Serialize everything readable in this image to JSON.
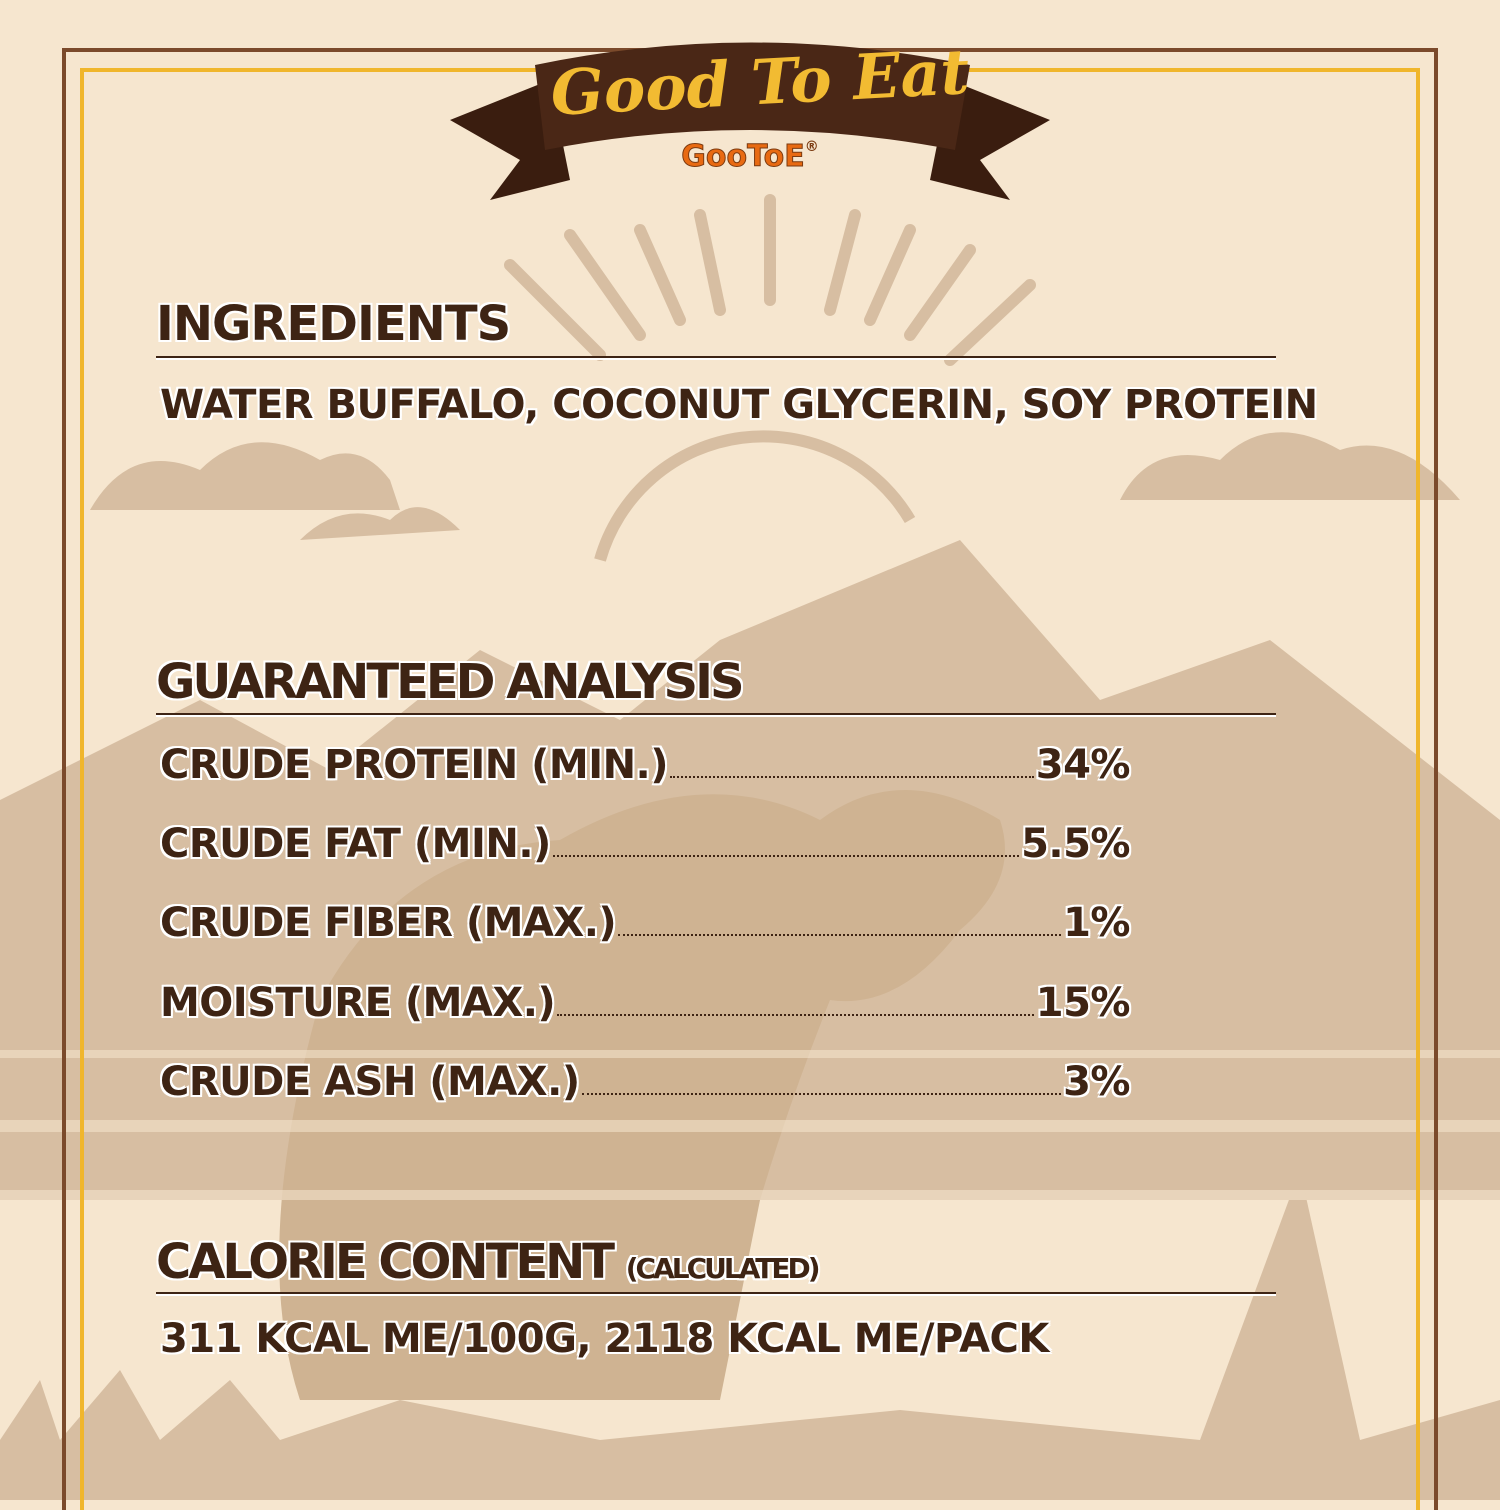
{
  "header": {
    "title": "Good To Eat",
    "brand": "GooToE",
    "registered_mark": "®"
  },
  "ingredients": {
    "heading": "INGREDIENTS",
    "text": "WATER BUFFALO, COCONUT GLYCERIN, SOY PROTEIN"
  },
  "analysis": {
    "heading": "GUARANTEED ANALYSIS",
    "rows": [
      {
        "label": "CRUDE PROTEIN (MIN.)",
        "value": "34%"
      },
      {
        "label": "CRUDE FAT (MIN.)",
        "value": "5.5%"
      },
      {
        "label": "CRUDE FIBER (MAX.)",
        "value": "1%"
      },
      {
        "label": "MOISTURE (MAX.)",
        "value": "15%"
      },
      {
        "label": "CRUDE ASH (MAX.)",
        "value": "3%"
      }
    ]
  },
  "calorie": {
    "heading": "CALORIE CONTENT",
    "qualifier": "(CALCULATED)",
    "text": "311 KCAL ME/100G, 2118 KCAL ME/PACK"
  },
  "colors": {
    "background": "#f6e6cf",
    "illustration": "#d7bea2",
    "text": "#3e2414",
    "ribbon": "#4a2716",
    "title": "#f2bb32",
    "brand": "#e86a12",
    "frame_outer": "#7b4a2b",
    "frame_inner": "#f0b62c"
  }
}
